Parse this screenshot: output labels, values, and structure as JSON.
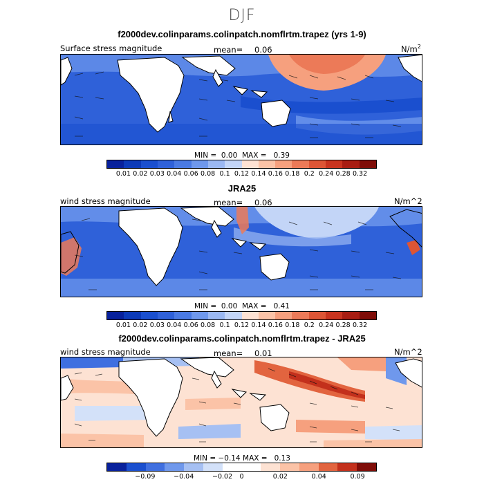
{
  "figure": {
    "title": "DJF",
    "panels": [
      {
        "title": "f2000dev.colinparams.colinpatch.nomflrtm.trapez (yrs 1-9)",
        "left_label": "Surface stress magnitude",
        "mean_label": "mean=",
        "mean_value": "0.06",
        "units_base": "N/m",
        "units_sup": "2",
        "min_label": "MIN =",
        "min_value": "0.00",
        "max_label": "MAX =",
        "max_value": "0.39",
        "colorbar_ticks": [
          "0.01",
          "0.02",
          "0.03",
          "0.04",
          "0.06",
          "0.08",
          "0.1",
          "0.12",
          "0.14",
          "0.16",
          "0.18",
          "0.2",
          "0.24",
          "0.28",
          "0.32"
        ]
      },
      {
        "title": "JRA25",
        "left_label": "wind stress magnitude",
        "mean_label": "mean=",
        "mean_value": "0.06",
        "units": "N/m^2",
        "min_label": "MIN =",
        "min_value": "0.00",
        "max_label": "MAX =",
        "max_value": "0.41",
        "colorbar_ticks": [
          "0.01",
          "0.02",
          "0.03",
          "0.04",
          "0.06",
          "0.08",
          "0.1",
          "0.12",
          "0.14",
          "0.16",
          "0.18",
          "0.2",
          "0.24",
          "0.28",
          "0.32"
        ]
      },
      {
        "title": "f2000dev.colinparams.colinpatch.nomflrtm.trapez - JRA25",
        "left_label": "wind stress magnitude",
        "mean_label": "mean=",
        "mean_value": "0.01",
        "units": "N/m^2",
        "min_label": "MIN =",
        "min_value": "−0.14",
        "max_label": "MAX =",
        "max_value": "0.13",
        "colorbar_ticks": [
          "−0.09",
          "−0.04",
          "−0.02",
          "0",
          "0.02",
          "0.04",
          "0.09"
        ]
      }
    ],
    "colors": {
      "abs_scale": [
        "#08219c",
        "#0c3ab8",
        "#1a4fcf",
        "#2f61d9",
        "#4a7ae3",
        "#6f98ec",
        "#9bb8f2",
        "#c3d5f7",
        "#fde2d3",
        "#fbc3a7",
        "#f6a07e",
        "#ec7a58",
        "#dd5535",
        "#c8341f",
        "#a81d12",
        "#7f0d08"
      ],
      "diff_scale": [
        "#08219c",
        "#1a4fcf",
        "#3f6fe0",
        "#6f98ec",
        "#a6c0f3",
        "#d3e1f9",
        "#ffffff",
        "#ffffff",
        "#fde2d3",
        "#fbc3a7",
        "#f6a07e",
        "#e2643f",
        "#c3301c",
        "#7f0d08"
      ]
    }
  }
}
